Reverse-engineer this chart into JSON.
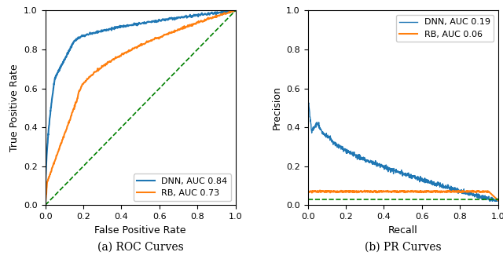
{
  "roc_dnn_auc": 0.84,
  "roc_rb_auc": 0.73,
  "pr_dnn_auc": 0.19,
  "pr_rb_auc": 0.06,
  "pr_baseline": 0.03,
  "dnn_color": "#1f77b4",
  "rb_color": "#ff7f0e",
  "diag_color": "green",
  "roc_xlabel": "False Positive Rate",
  "roc_ylabel": "True Positive Rate",
  "pr_xlabel": "Recall",
  "pr_ylabel": "Precision",
  "caption_roc": "(a) ROC Curves",
  "caption_pr": "(b) PR Curves",
  "legend_dnn_roc": "DNN, AUC 0.84",
  "legend_rb_roc": "RB, AUC 0.73",
  "legend_dnn_pr": "DNN, AUC 0.19",
  "legend_rb_pr": "RB, AUC 0.06",
  "fig_width": 6.4,
  "fig_height": 3.35,
  "dpi": 100
}
